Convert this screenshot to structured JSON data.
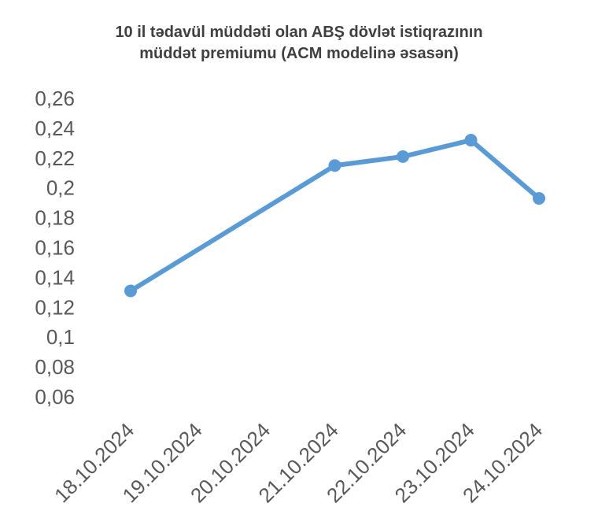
{
  "chart_data": {
    "type": "line",
    "title_lines": [
      "10 il tədavül müddəti olan ABŞ dövlət istiqrazının",
      "müddət premiumu (ACM modelinə əsasən)"
    ],
    "categories": [
      "18.10.2024",
      "19.10.2024",
      "20.10.2024",
      "21.10.2024",
      "22.10.2024",
      "23.10.2024",
      "24.10.2024"
    ],
    "series": [
      {
        "values": [
          0.131,
          null,
          null,
          0.215,
          0.221,
          0.232,
          0.193
        ],
        "color": "#5B9BD5"
      }
    ],
    "yticks": [
      "0,06",
      "0,08",
      "0,1",
      "0,12",
      "0,14",
      "0,16",
      "0,18",
      "0,2",
      "0,22",
      "0,24",
      "0,26"
    ],
    "ylim": [
      0.06,
      0.26
    ],
    "grid": false,
    "legend": "none",
    "xlabel": "",
    "ylabel": ""
  }
}
